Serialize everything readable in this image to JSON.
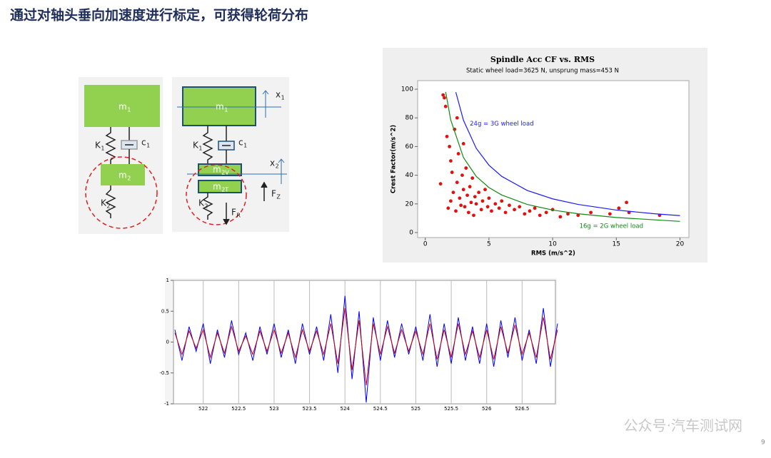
{
  "title": "通过对轴头垂向加速度进行标定，可获得轮荷分布",
  "page_number": "9",
  "watermark": "公众号·汽车测试网",
  "diagram": {
    "labels": [
      {
        "text": "m",
        "sub": "1"
      },
      {
        "text": "K",
        "sub": "1"
      },
      {
        "text": "c",
        "sub": "1"
      },
      {
        "text": "m",
        "sub": "2"
      },
      {
        "text": "K",
        "sub": "2"
      },
      {
        "text": "m",
        "sub": "1"
      },
      {
        "text": "K",
        "sub": "1"
      },
      {
        "text": "c",
        "sub": "1"
      },
      {
        "text": "m",
        "sub": "2V"
      },
      {
        "text": "m",
        "sub": "2T"
      },
      {
        "text": "K",
        "sub": "2"
      },
      {
        "text": "x",
        "sub": "1"
      },
      {
        "text": "x",
        "sub": "2"
      },
      {
        "text": "F",
        "sub": "Z"
      },
      {
        "text": "F",
        "sub": "R"
      }
    ]
  },
  "chart_data": [
    {
      "type": "scatter",
      "title": "Spindle Acc CF vs. RMS",
      "subtitle": "Static wheel load=3625 N, unsprung mass=453 N",
      "x_label": "RMS (m/s^2)",
      "y_label": "Crest Factor(m/s^2)",
      "xlim": [
        -0.6,
        20.7
      ],
      "ylim": [
        -3.5,
        106
      ],
      "xticks": [
        0,
        5,
        10,
        15,
        20
      ],
      "yticks": [
        0,
        20,
        40,
        60,
        80,
        100
      ],
      "annotations": [
        "24g = 3G wheel load",
        "16g = 2G wheel load"
      ],
      "series": [
        {
          "mode": "markers",
          "color": "#e31010",
          "x": [
            1.2,
            1.5,
            1.6,
            1.8,
            1.9,
            2.0,
            2.1,
            2.2,
            2.3,
            2.4,
            2.5,
            2.6,
            2.7,
            2.8,
            2.9,
            3.0,
            3.1,
            3.2,
            3.3,
            3.4,
            3.5,
            3.6,
            3.7,
            3.8,
            3.9,
            4.0,
            4.2,
            4.4,
            4.5,
            4.7,
            4.9,
            5.0,
            5.2,
            5.5,
            5.8,
            6.0,
            6.3,
            6.6,
            7.0,
            7.4,
            7.8,
            8.2,
            8.6,
            9.0,
            9.5,
            10.0,
            10.6,
            11.2,
            12.0,
            13.0,
            14.5,
            15.2,
            15.8,
            16.0,
            18.4,
            2.0,
            2.5,
            3.0,
            1.4,
            1.7
          ],
          "values": [
            34,
            94,
            88,
            17,
            60,
            22,
            42,
            28,
            72,
            15,
            35,
            55,
            24,
            19,
            40,
            30,
            18,
            45,
            26,
            14,
            32,
            21,
            38,
            12,
            25,
            20,
            28,
            16,
            22,
            30,
            18,
            24,
            15,
            20,
            17,
            22,
            14,
            19,
            16,
            18,
            13,
            15,
            17,
            12,
            14,
            16,
            11,
            13,
            12,
            14,
            13,
            17,
            21,
            14,
            12,
            50,
            80,
            62,
            96,
            67
          ]
        },
        {
          "mode": "line",
          "color": "#1a1aff",
          "x": [
            2.4,
            3,
            4,
            5,
            6,
            8,
            10,
            12,
            15,
            18,
            20
          ],
          "values": [
            97.9,
            78.3,
            58.8,
            47,
            39.2,
            29.4,
            23.5,
            19.6,
            15.7,
            13.1,
            11.8
          ]
        },
        {
          "mode": "line",
          "color": "#108a10",
          "x": [
            1.6,
            2,
            3,
            4,
            5,
            6,
            8,
            10,
            12,
            15,
            20
          ],
          "values": [
            98.1,
            78.5,
            52.3,
            39.2,
            31.4,
            26.2,
            19.6,
            15.7,
            13.1,
            10.5,
            7.8
          ]
        }
      ]
    },
    {
      "type": "line",
      "xlim": [
        521.58,
        526.97
      ],
      "ylim": [
        -1,
        1
      ],
      "xticks": [
        522,
        522.5,
        523,
        523.5,
        524,
        524.5,
        525,
        525.5,
        526,
        526.5
      ],
      "yticks": [
        -1,
        -0.5,
        0,
        0.5,
        1
      ],
      "grid": true,
      "x": [
        521.6,
        521.7,
        521.8,
        521.9,
        522.0,
        522.1,
        522.2,
        522.3,
        522.4,
        522.5,
        522.6,
        522.7,
        522.8,
        522.9,
        523.0,
        523.1,
        523.2,
        523.3,
        523.4,
        523.5,
        523.6,
        523.7,
        523.8,
        523.9,
        524.0,
        524.1,
        524.2,
        524.3,
        524.4,
        524.5,
        524.6,
        524.7,
        524.8,
        524.9,
        525.0,
        525.1,
        525.2,
        525.3,
        525.4,
        525.5,
        525.6,
        525.7,
        525.8,
        525.9,
        526.0,
        526.1,
        526.2,
        526.3,
        526.4,
        526.5,
        526.6,
        526.7,
        526.8,
        526.9,
        527.0
      ],
      "series": [
        {
          "color": "#0000ff",
          "values": [
            0.2,
            -0.3,
            0.25,
            -0.15,
            0.3,
            -0.35,
            0.2,
            -0.25,
            0.35,
            -0.2,
            0.15,
            -0.3,
            0.25,
            -0.2,
            0.3,
            -0.25,
            0.2,
            -0.35,
            0.3,
            -0.2,
            0.25,
            -0.3,
            0.45,
            -0.5,
            0.75,
            -0.6,
            0.5,
            -0.98,
            0.4,
            -0.3,
            0.35,
            -0.25,
            0.3,
            -0.2,
            0.25,
            -0.3,
            0.45,
            -0.4,
            0.3,
            -0.35,
            0.4,
            -0.3,
            0.25,
            -0.35,
            0.3,
            -0.4,
            0.35,
            -0.25,
            0.4,
            -0.3,
            0.2,
            -0.35,
            0.55,
            -0.4,
            0.3
          ]
        },
        {
          "color": "#cc0000",
          "values": [
            0.15,
            -0.2,
            0.18,
            -0.1,
            0.2,
            -0.25,
            0.15,
            -0.18,
            0.25,
            -0.15,
            0.1,
            -0.2,
            0.18,
            -0.15,
            0.2,
            -0.18,
            0.15,
            -0.25,
            0.2,
            -0.15,
            0.18,
            -0.2,
            0.3,
            -0.35,
            0.55,
            -0.45,
            0.35,
            -0.7,
            0.3,
            -0.2,
            0.25,
            -0.18,
            0.2,
            -0.15,
            0.18,
            -0.2,
            0.3,
            -0.28,
            0.2,
            -0.25,
            0.3,
            -0.2,
            0.18,
            -0.25,
            0.2,
            -0.28,
            0.25,
            -0.18,
            0.28,
            -0.2,
            0.15,
            -0.25,
            0.4,
            -0.28,
            0.2
          ]
        }
      ]
    }
  ]
}
